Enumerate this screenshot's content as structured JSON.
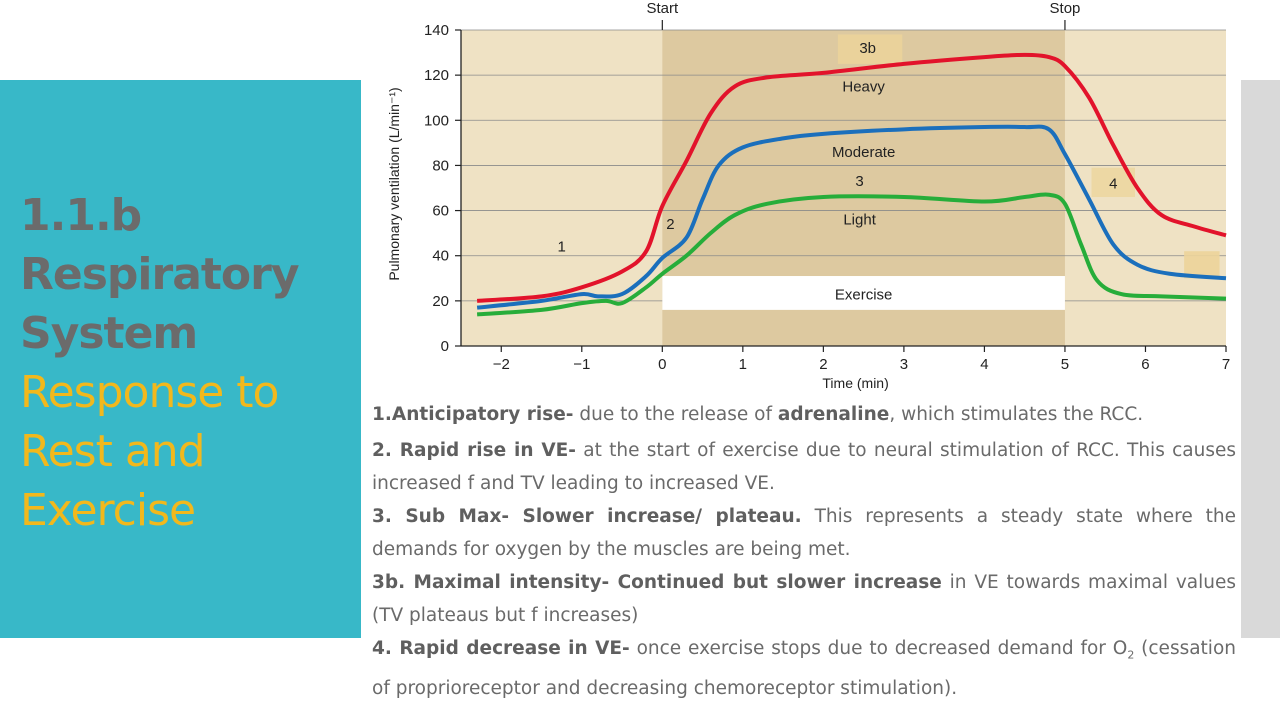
{
  "slide": {
    "title_lines": [
      "1.1.b",
      "Respiratory",
      "System"
    ],
    "subtitle_lines": [
      "Response to",
      "Rest and",
      "Exercise"
    ]
  },
  "colors": {
    "panel": "#38b8c8",
    "title": "#6b6b6b",
    "subtitle": "#f2b81c",
    "plot_bg": "#efe2c4",
    "exercise_bg": "#ddc9a0",
    "heavy": "#e2132b",
    "moderate": "#1b6fbc",
    "light": "#27ad3a"
  },
  "chart_data": {
    "type": "line",
    "title": "",
    "xlabel": "Time (min)",
    "ylabel": "Pulmonary ventilation (L/min⁻¹)",
    "xlim": [
      -2.5,
      7
    ],
    "ylim": [
      0,
      140
    ],
    "xticks": [
      -2,
      -1,
      0,
      1,
      2,
      3,
      4,
      5,
      6,
      7
    ],
    "xtick_labels": [
      "−2",
      "−1",
      "0",
      "1",
      "2",
      "3",
      "4",
      "5",
      "6",
      "7"
    ],
    "yticks": [
      0,
      20,
      40,
      60,
      80,
      100,
      120,
      140
    ],
    "top_markers": [
      {
        "x": 0,
        "label": "Start"
      },
      {
        "x": 5,
        "label": "Stop"
      }
    ],
    "exercise_band": {
      "x0": 0,
      "x1": 5,
      "label": "Exercise"
    },
    "series": [
      {
        "name": "Heavy",
        "points": [
          [
            -2.3,
            20
          ],
          [
            -1.5,
            22
          ],
          [
            -1,
            26
          ],
          [
            -0.5,
            33
          ],
          [
            -0.2,
            42
          ],
          [
            0,
            62
          ],
          [
            0.3,
            82
          ],
          [
            0.6,
            103
          ],
          [
            0.9,
            115
          ],
          [
            1.3,
            119
          ],
          [
            2,
            121
          ],
          [
            3,
            125
          ],
          [
            4,
            128
          ],
          [
            4.5,
            129
          ],
          [
            4.8,
            128
          ],
          [
            5,
            124
          ],
          [
            5.3,
            110
          ],
          [
            5.6,
            89
          ],
          [
            5.9,
            70
          ],
          [
            6.2,
            58
          ],
          [
            6.6,
            53
          ],
          [
            7,
            49
          ]
        ]
      },
      {
        "name": "Moderate",
        "points": [
          [
            -2.3,
            17
          ],
          [
            -1.5,
            20
          ],
          [
            -1,
            23
          ],
          [
            -0.8,
            22
          ],
          [
            -0.5,
            23
          ],
          [
            -0.2,
            31
          ],
          [
            0,
            39
          ],
          [
            0.3,
            48
          ],
          [
            0.5,
            65
          ],
          [
            0.7,
            80
          ],
          [
            1,
            88
          ],
          [
            1.5,
            92
          ],
          [
            2,
            94
          ],
          [
            3,
            96
          ],
          [
            4,
            97
          ],
          [
            4.5,
            97
          ],
          [
            4.8,
            96
          ],
          [
            5,
            85
          ],
          [
            5.3,
            65
          ],
          [
            5.6,
            45
          ],
          [
            5.9,
            36
          ],
          [
            6.3,
            32
          ],
          [
            7,
            30
          ]
        ]
      },
      {
        "name": "Light",
        "points": [
          [
            -2.3,
            14
          ],
          [
            -1.5,
            16
          ],
          [
            -1,
            19
          ],
          [
            -0.7,
            20
          ],
          [
            -0.5,
            19
          ],
          [
            -0.2,
            26
          ],
          [
            0,
            32
          ],
          [
            0.3,
            40
          ],
          [
            0.6,
            50
          ],
          [
            0.9,
            58
          ],
          [
            1.3,
            63
          ],
          [
            2,
            66
          ],
          [
            3,
            66
          ],
          [
            4,
            64
          ],
          [
            4.5,
            66
          ],
          [
            4.8,
            67
          ],
          [
            5,
            63
          ],
          [
            5.2,
            45
          ],
          [
            5.4,
            29
          ],
          [
            5.7,
            23
          ],
          [
            6.2,
            22
          ],
          [
            7,
            21
          ]
        ]
      }
    ],
    "annotations": [
      {
        "text": "1",
        "x": -1.25,
        "y": 44
      },
      {
        "text": "2",
        "x": 0.1,
        "y": 54
      },
      {
        "text": "3",
        "x": 2.45,
        "y": 73
      },
      {
        "text": "Light",
        "x": 2.45,
        "y": 56
      },
      {
        "text": "Moderate",
        "x": 2.5,
        "y": 86
      },
      {
        "text": "Heavy",
        "x": 2.5,
        "y": 115
      },
      {
        "text": "3b",
        "x": 2.55,
        "y": 132
      },
      {
        "text": "4",
        "x": 5.6,
        "y": 72
      }
    ]
  },
  "notes": {
    "n1": {
      "bold": "1.Anticipatory rise-",
      "t1": " due to the release of ",
      "bold2": "adrenaline",
      "t2": ", which stimulates the RCC."
    },
    "n2": {
      "bold": "2. Rapid rise in VE-",
      "t1": " at the start of exercise due to neural stimulation of RCC. This causes increased f and TV leading to increased VE."
    },
    "n3": {
      "bold": "3. Sub Max- Slower increase/ plateau.",
      "t1": " This represents a steady state where the demands for oxygen by the muscles are being met."
    },
    "n3b": {
      "bold": "3b. Maximal intensity- Continued but slower increase",
      "t1": " in VE towards maximal values (TV plateaus but f increases)"
    },
    "n4": {
      "bold": "4. Rapid decrease in VE-",
      "t1": " once exercise stops due to decreased demand for O",
      "sub": "2",
      "t2": "(cessation of proprioreceptor and decreasing chemoreceptor stimulation)."
    }
  }
}
